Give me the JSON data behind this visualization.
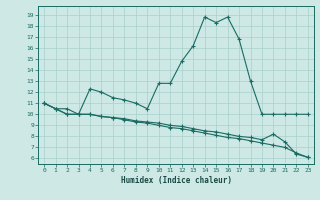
{
  "xlabel": "Humidex (Indice chaleur)",
  "background_color": "#cde8e5",
  "grid_color": "#a8d0cc",
  "line_color": "#1a6b62",
  "x_ticks": [
    0,
    1,
    2,
    3,
    4,
    5,
    6,
    7,
    8,
    9,
    10,
    11,
    12,
    13,
    14,
    15,
    16,
    17,
    18,
    19,
    20,
    21,
    22,
    23
  ],
  "y_ticks": [
    6,
    7,
    8,
    9,
    10,
    11,
    12,
    13,
    14,
    15,
    16,
    17,
    18,
    19
  ],
  "ylim": [
    5.5,
    19.8
  ],
  "xlim": [
    -0.5,
    23.5
  ],
  "line1_x": [
    0,
    1,
    2,
    3,
    4,
    5,
    6,
    7,
    8,
    9,
    10,
    11,
    12,
    13,
    14,
    15,
    16,
    17,
    18,
    19,
    20,
    21,
    22,
    23
  ],
  "line1_y": [
    11.0,
    10.5,
    10.5,
    10.0,
    12.3,
    12.0,
    11.5,
    11.3,
    11.0,
    10.5,
    12.8,
    12.8,
    14.8,
    16.2,
    18.8,
    18.3,
    18.8,
    16.8,
    13.0,
    10.0,
    10.0,
    10.0,
    10.0,
    10.0
  ],
  "line2_x": [
    0,
    1,
    2,
    3,
    4,
    5,
    6,
    7,
    8,
    9,
    10,
    11,
    12,
    13,
    14,
    15,
    16,
    17,
    18,
    19,
    20,
    21,
    22,
    23
  ],
  "line2_y": [
    11.0,
    10.5,
    10.0,
    10.0,
    10.0,
    9.8,
    9.7,
    9.6,
    9.4,
    9.3,
    9.2,
    9.0,
    8.9,
    8.7,
    8.5,
    8.4,
    8.2,
    8.0,
    7.9,
    7.7,
    8.2,
    7.5,
    6.4,
    6.1
  ],
  "line3_x": [
    0,
    1,
    2,
    3,
    4,
    5,
    6,
    7,
    8,
    9,
    10,
    11,
    12,
    13,
    14,
    15,
    16,
    17,
    18,
    19,
    20,
    21,
    22,
    23
  ],
  "line3_y": [
    11.0,
    10.5,
    10.0,
    10.0,
    10.0,
    9.8,
    9.7,
    9.5,
    9.3,
    9.2,
    9.0,
    8.8,
    8.7,
    8.5,
    8.3,
    8.1,
    7.9,
    7.8,
    7.6,
    7.4,
    7.2,
    7.0,
    6.5,
    6.1
  ]
}
